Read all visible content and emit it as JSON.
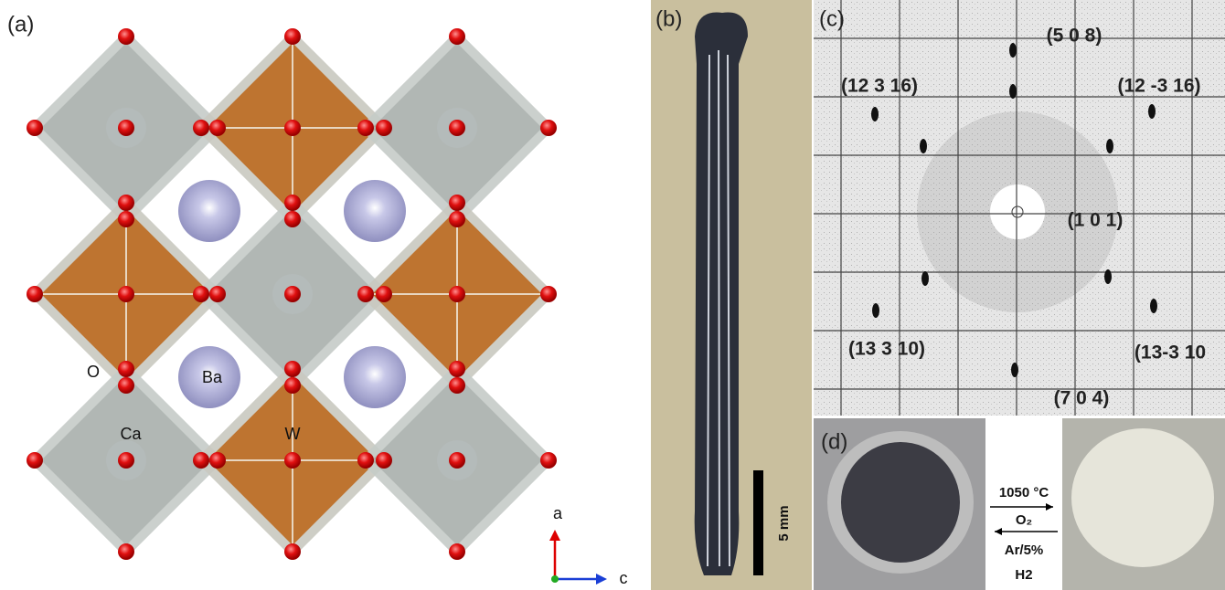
{
  "panels": {
    "a": {
      "label": "(a)",
      "atoms": {
        "o": "O",
        "ba": "Ba",
        "ca": "Ca",
        "w": "W"
      },
      "axes": {
        "vertical": "a",
        "horizontal": "c"
      }
    },
    "b": {
      "label": "(b)",
      "scale_bar": "5 mm"
    },
    "c": {
      "label": "(c)",
      "reflections": [
        "(5 0 8)",
        "(12 3 16)",
        "(12 -3 16)",
        "(1 0 1)",
        "(13 3 10)",
        "(13-3 10",
        "(7 0 4)"
      ]
    },
    "d": {
      "label": "(d)",
      "forward": {
        "temperature": "1050 °C",
        "gas": "O₂"
      },
      "reverse": {
        "gas": "Ar/5%",
        "gas2": "H2"
      }
    }
  }
}
